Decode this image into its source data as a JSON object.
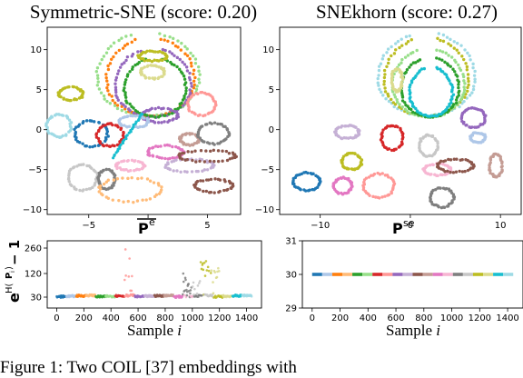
{
  "caption": "Figure 1: Two COIL [37] embeddings with",
  "chart_data": [
    {
      "type": "scatter",
      "title": "Symmetric-SNE (score: 0.20)",
      "xlabel_base": "P",
      "xlabel_sup": "e",
      "xlabel_overline": true,
      "xticks": [
        -5,
        0,
        5
      ],
      "xtick_labels": [
        "−5",
        "",
        "5"
      ],
      "yticks": [
        -10,
        -5,
        0,
        5,
        10
      ],
      "ytick_labels": [
        "−10",
        "−5",
        "0",
        "5",
        "10"
      ],
      "xlim": [
        -8.5,
        7.8
      ],
      "ylim": [
        -10.6,
        12.8
      ],
      "grid": false,
      "clusters": [
        {
          "shape": "arch",
          "cx": 0.0,
          "cy": 6.5,
          "rx": 4.3,
          "ry": 5.6,
          "color": "#98df8a"
        },
        {
          "shape": "arch",
          "cx": 0.2,
          "cy": 6.2,
          "rx": 3.7,
          "ry": 5.3,
          "color": "#ff7f0e"
        },
        {
          "shape": "arch",
          "cx": 0.4,
          "cy": 5.5,
          "rx": 3.2,
          "ry": 4.6,
          "color": "#9467bd"
        },
        {
          "shape": "arch",
          "cx": 0.6,
          "cy": 5.0,
          "rx": 2.6,
          "ry": 4.0,
          "color": "#2ca02c"
        },
        {
          "shape": "ring",
          "cx": 0.4,
          "cy": 9.2,
          "rx": 1.2,
          "ry": 0.6,
          "color": "#bcbd22"
        },
        {
          "shape": "ring",
          "cx": 0.4,
          "cy": 7.2,
          "rx": 1.0,
          "ry": 0.8,
          "color": "#dbdb8d"
        },
        {
          "shape": "ring",
          "cx": 1.0,
          "cy": 1.8,
          "rx": 1.5,
          "ry": 0.9,
          "color": "#9467bd"
        },
        {
          "shape": "ring",
          "cx": -6.5,
          "cy": 4.5,
          "rx": 1.0,
          "ry": 0.8,
          "color": "#bcbd22"
        },
        {
          "shape": "ring",
          "cx": -7.5,
          "cy": 0.5,
          "rx": 1.0,
          "ry": 1.4,
          "color": "#9edae5"
        },
        {
          "shape": "ring",
          "cx": -4.8,
          "cy": -0.5,
          "rx": 1.4,
          "ry": 1.6,
          "color": "#1f77b4"
        },
        {
          "shape": "ring",
          "cx": -3.2,
          "cy": -0.7,
          "rx": 1.1,
          "ry": 1.4,
          "color": "#d62728"
        },
        {
          "shape": "ring",
          "cx": -1.2,
          "cy": 1.0,
          "rx": 1.2,
          "ry": 0.7,
          "color": "#aec7e8"
        },
        {
          "shape": "ring",
          "cx": -5.5,
          "cy": -6.0,
          "rx": 1.2,
          "ry": 1.6,
          "color": "#c7c7c7"
        },
        {
          "shape": "ring",
          "cx": -3.5,
          "cy": -6.2,
          "rx": 0.7,
          "ry": 1.2,
          "color": "#7f7f7f"
        },
        {
          "shape": "ring",
          "cx": -1.5,
          "cy": -7.5,
          "rx": 2.6,
          "ry": 1.5,
          "color": "#ffbb78"
        },
        {
          "shape": "ring",
          "cx": -1.5,
          "cy": -4.5,
          "rx": 1.2,
          "ry": 0.6,
          "color": "#f7b6d2"
        },
        {
          "shape": "ring",
          "cx": 1.5,
          "cy": -2.8,
          "rx": 1.5,
          "ry": 0.8,
          "color": "#e377c2"
        },
        {
          "shape": "ring",
          "cx": 3.5,
          "cy": -1.2,
          "rx": 0.8,
          "ry": 0.7,
          "color": "#c49c94"
        },
        {
          "shape": "ring",
          "cx": 5.5,
          "cy": -0.5,
          "rx": 1.3,
          "ry": 1.3,
          "color": "#7f7f7f"
        },
        {
          "shape": "ring",
          "cx": 3.5,
          "cy": -4.5,
          "rx": 2.0,
          "ry": 0.8,
          "color": "#c5b0d5"
        },
        {
          "shape": "ring",
          "cx": 5.5,
          "cy": -7.0,
          "rx": 1.6,
          "ry": 0.8,
          "color": "#8c564b"
        },
        {
          "shape": "ring",
          "cx": 4.5,
          "cy": 3.2,
          "rx": 1.2,
          "ry": 1.4,
          "color": "#ff9896"
        },
        {
          "shape": "ring",
          "cx": 5.0,
          "cy": -3.3,
          "rx": 2.4,
          "ry": 0.7,
          "color": "#8c564b"
        },
        {
          "shape": "line",
          "x1": -3.0,
          "y1": -3.5,
          "x2": -0.5,
          "y2": 2.0,
          "color": "#17becf"
        }
      ]
    },
    {
      "type": "scatter",
      "title": "SNEkhorn (score: 0.27)",
      "xlabel_base": "P",
      "xlabel_sup": "se",
      "xlabel_overline": false,
      "xticks": [
        -10,
        0,
        10
      ],
      "xtick_labels": [
        "−10",
        "0",
        "10"
      ],
      "yticks": [
        -10,
        -5,
        0,
        5,
        10
      ],
      "ytick_labels": [
        "−10",
        "−5",
        "0",
        "5",
        "10"
      ],
      "xlim": [
        -14.5,
        12.3
      ],
      "ylim": [
        -10.6,
        12.8
      ],
      "grid": false,
      "clusters": [
        {
          "shape": "arch",
          "cx": 1.8,
          "cy": 6.5,
          "rx": 5.4,
          "ry": 5.6,
          "color": "#9edae5"
        },
        {
          "shape": "arch",
          "cx": 1.8,
          "cy": 6.2,
          "rx": 4.7,
          "ry": 5.3,
          "color": "#bcbd22"
        },
        {
          "shape": "arch",
          "cx": 2.0,
          "cy": 5.5,
          "rx": 4.0,
          "ry": 4.6,
          "color": "#98df8a"
        },
        {
          "shape": "arch",
          "cx": 2.2,
          "cy": 5.0,
          "rx": 3.2,
          "ry": 4.0,
          "color": "#2ca02c"
        },
        {
          "shape": "arch",
          "cx": 2.3,
          "cy": 4.5,
          "rx": 2.4,
          "ry": 3.3,
          "color": "#17becf"
        },
        {
          "shape": "ring",
          "cx": -1.5,
          "cy": 6.2,
          "rx": 0.6,
          "ry": 1.4,
          "color": "#dbdb8d"
        },
        {
          "shape": "ring",
          "cx": 7.0,
          "cy": 1.5,
          "rx": 1.3,
          "ry": 1.2,
          "color": "#9467bd"
        },
        {
          "shape": "ring",
          "cx": -7.0,
          "cy": -0.3,
          "rx": 1.3,
          "ry": 0.8,
          "color": "#c5b0d5"
        },
        {
          "shape": "ring",
          "cx": -6.5,
          "cy": -4.0,
          "rx": 1.1,
          "ry": 1.0,
          "color": "#bcbd22"
        },
        {
          "shape": "ring",
          "cx": -11.5,
          "cy": -6.5,
          "rx": 1.5,
          "ry": 1.1,
          "color": "#1f77b4"
        },
        {
          "shape": "ring",
          "cx": -7.5,
          "cy": -7.0,
          "rx": 1.0,
          "ry": 1.0,
          "color": "#e377c2"
        },
        {
          "shape": "ring",
          "cx": -3.5,
          "cy": -7.0,
          "rx": 1.7,
          "ry": 1.5,
          "color": "#ff9896"
        },
        {
          "shape": "ring",
          "cx": -2.0,
          "cy": -1.0,
          "rx": 1.2,
          "ry": 1.5,
          "color": "#d62728"
        },
        {
          "shape": "ring",
          "cx": 2.0,
          "cy": -2.0,
          "rx": 1.0,
          "ry": 1.3,
          "color": "#c7c7c7"
        },
        {
          "shape": "ring",
          "cx": 3.0,
          "cy": -5.0,
          "rx": 1.5,
          "ry": 0.7,
          "color": "#f7b6d2"
        },
        {
          "shape": "ring",
          "cx": 3.5,
          "cy": -8.5,
          "rx": 1.3,
          "ry": 1.2,
          "color": "#7f7f7f"
        },
        {
          "shape": "ring",
          "cx": 9.5,
          "cy": -4.5,
          "rx": 0.7,
          "ry": 1.4,
          "color": "#c49c94"
        },
        {
          "shape": "ring",
          "cx": 5.0,
          "cy": -4.5,
          "rx": 2.0,
          "ry": 0.8,
          "color": "#8c564b"
        },
        {
          "shape": "ring",
          "cx": 7.5,
          "cy": -1.0,
          "rx": 0.8,
          "ry": 0.6,
          "color": "#aec7e8"
        }
      ]
    },
    {
      "type": "scatter",
      "ylabel": "e^{H(P_i)} − 1",
      "ylabel_base": "e",
      "ylabel_sup_main": "H(",
      "ylabel_sup_bold": "P",
      "ylabel_sup_sub": "i",
      "ylabel_sup_end": ")",
      "ylabel_tail": " − 1",
      "xlabel_text": "Sample ",
      "xlabel_var": "i",
      "xticks": [
        0,
        200,
        400,
        600,
        800,
        1000,
        1200,
        1400
      ],
      "yticks": [
        30,
        120,
        260
      ],
      "ylim": [
        5,
        285
      ],
      "xlim": [
        -70,
        1510
      ],
      "scale": "nonlinear",
      "n_samples": 1440,
      "n_classes": 20,
      "base_value": 30,
      "spikes": [
        {
          "start": 500,
          "end": 560,
          "max": 260,
          "color": "#ff9896"
        },
        {
          "start": 930,
          "end": 1010,
          "max": 120,
          "color": "#7f7f7f"
        },
        {
          "start": 1060,
          "end": 1140,
          "max": 200,
          "color": "#bcbd22"
        },
        {
          "start": 1140,
          "end": 1200,
          "max": 150,
          "color": "#dbdb8d"
        },
        {
          "start": 1000,
          "end": 1060,
          "max": 95,
          "color": "#c7c7c7"
        }
      ]
    },
    {
      "type": "scatter",
      "xlabel_text": "Sample ",
      "xlabel_var": "i",
      "xticks": [
        0,
        200,
        400,
        600,
        800,
        1000,
        1200,
        1400
      ],
      "yticks": [
        29,
        30,
        31
      ],
      "ylim": [
        29,
        31
      ],
      "xlim": [
        -70,
        1510
      ],
      "n_samples": 1440,
      "n_classes": 20,
      "constant_value": 30
    }
  ],
  "palette": [
    "#1f77b4",
    "#aec7e8",
    "#ff7f0e",
    "#ffbb78",
    "#2ca02c",
    "#98df8a",
    "#d62728",
    "#ff9896",
    "#9467bd",
    "#c5b0d5",
    "#8c564b",
    "#c49c94",
    "#e377c2",
    "#f7b6d2",
    "#7f7f7f",
    "#c7c7c7",
    "#bcbd22",
    "#dbdb8d",
    "#17becf",
    "#9edae5"
  ]
}
